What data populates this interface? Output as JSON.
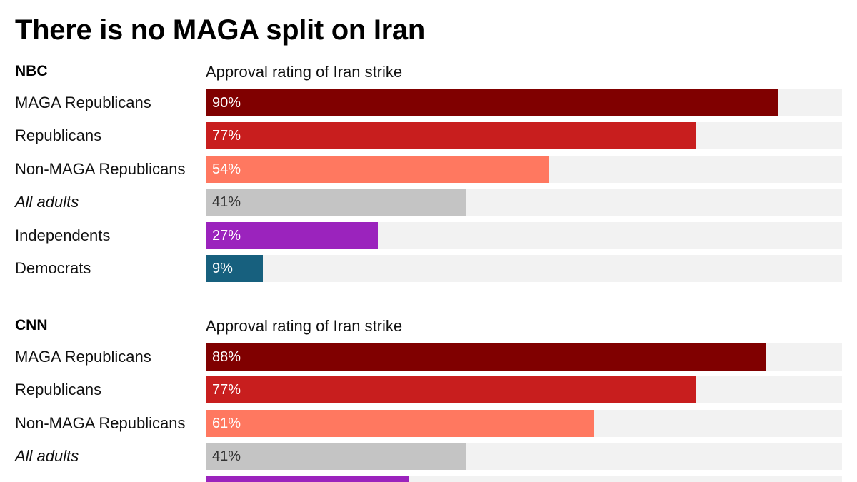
{
  "title": "There is no MAGA split on Iran",
  "chart_data": [
    {
      "type": "bar",
      "orientation": "horizontal",
      "source_label": "NBC",
      "subtitle": "Approval rating of Iran strike",
      "xlim": [
        0,
        100
      ],
      "categories": [
        "MAGA Republicans",
        "Republicans",
        "Non-MAGA Republicans",
        "All adults",
        "Independents",
        "Democrats"
      ],
      "values": [
        90,
        77,
        54,
        41,
        27,
        9
      ],
      "value_labels": [
        "90%",
        "77%",
        "54%",
        "41%",
        "27%",
        "9%"
      ],
      "italic_categories": [
        "All adults"
      ],
      "colors": [
        "#800000",
        "#c81e1e",
        "#ff7860",
        "#c4c4c4",
        "#9b23bd",
        "#17607e"
      ]
    },
    {
      "type": "bar",
      "orientation": "horizontal",
      "source_label": "CNN",
      "subtitle": "Approval rating of Iran strike",
      "xlim": [
        0,
        100
      ],
      "categories": [
        "MAGA Republicans",
        "Republicans",
        "Non-MAGA Republicans",
        "All adults",
        ""
      ],
      "values": [
        88,
        77,
        61,
        41,
        32
      ],
      "value_labels": [
        "88%",
        "77%",
        "61%",
        "41%",
        ""
      ],
      "italic_categories": [
        "All adults"
      ],
      "colors": [
        "#800000",
        "#c81e1e",
        "#ff7860",
        "#c4c4c4",
        "#9b23bd"
      ]
    }
  ]
}
